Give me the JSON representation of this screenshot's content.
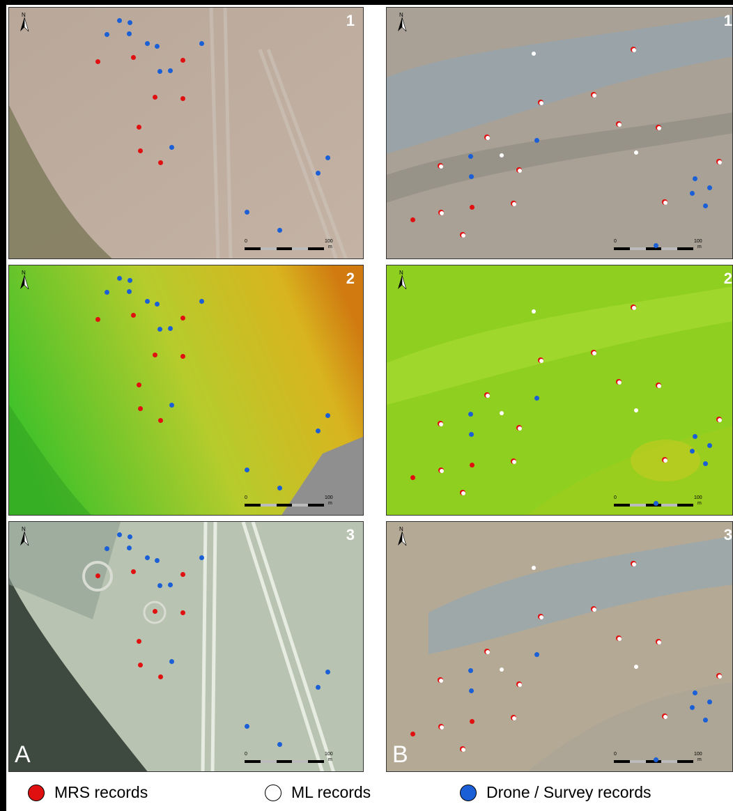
{
  "panels": {
    "A1": {
      "number": "1"
    },
    "A2": {
      "number": "2"
    },
    "A3": {
      "number": "3",
      "letter": "A"
    },
    "B1": {
      "number": "1"
    },
    "B2": {
      "number": "2"
    },
    "B3": {
      "number": "3",
      "letter": "B"
    }
  },
  "north_label": "N",
  "scale": {
    "start": "0",
    "end": "100",
    "unit": "m"
  },
  "legend": {
    "mrs": "MRS records",
    "ml": "ML records",
    "drone": "Drone / Survey records"
  },
  "colors": {
    "mrs": "#e01010",
    "ml": "#ffffff",
    "drone": "#1a5fd6"
  },
  "icons": {
    "north_arrow": "north-arrow-icon"
  }
}
